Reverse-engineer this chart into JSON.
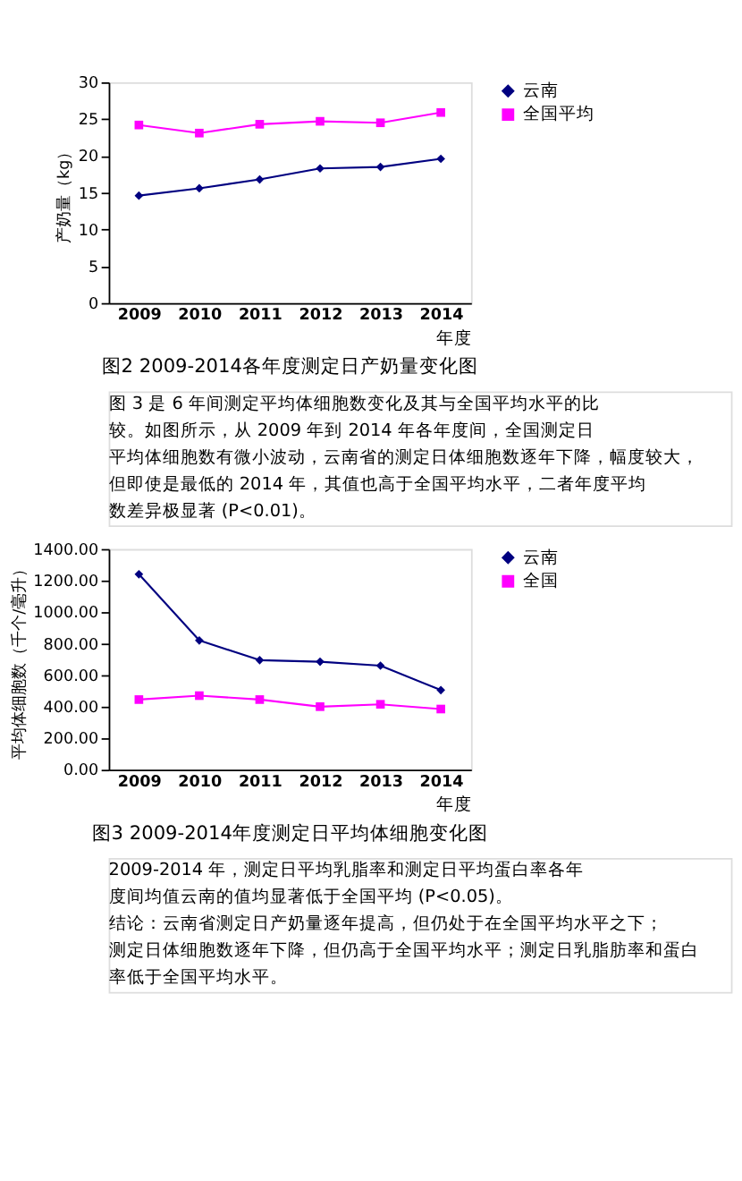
{
  "chart_data": [
    {
      "type": "line",
      "title": "图2 2009-2014各年度测定日产奶量变化图",
      "xlabel": "年度",
      "ylabel": "产奶量（kg）",
      "categories": [
        "2009",
        "2010",
        "2011",
        "2012",
        "2013",
        "2014"
      ],
      "ylim": [
        0,
        30
      ],
      "yticks": [
        0,
        5,
        10,
        15,
        20,
        25,
        30
      ],
      "legend": "right",
      "grid": false,
      "series": [
        {
          "name": "云南",
          "color": "#000080",
          "marker": "diamond",
          "values": [
            14.6,
            15.6,
            16.8,
            18.3,
            18.5,
            19.6
          ]
        },
        {
          "name": "全国平均",
          "color": "#ff00ff",
          "marker": "square",
          "values": [
            24.2,
            23.1,
            24.3,
            24.7,
            24.5,
            25.9
          ]
        }
      ]
    },
    {
      "type": "other",
      "annotations": [
        "图 3 是 6 年间测定平均体细胞数变化及其与全国平均水平的比较。如图所示，从 2009 年到 2014 年各年度间，全国测定日平均体细胞数有微小波动，云南省的测定日体细胞数逐年下降，幅度较大，但即使是最低的 2014 年，其值也高于全国平均水平，二者年度平均数差异极显著 (P<0.01)。"
      ]
    },
    {
      "type": "line",
      "title": "图3 2009-2014年度测定日平均体细胞变化图",
      "xlabel": "年度",
      "ylabel": "平均体细胞数（千个/毫升）",
      "categories": [
        "2009",
        "2010",
        "2011",
        "2012",
        "2013",
        "2014"
      ],
      "ylim": [
        0,
        1400
      ],
      "yticks": [
        {
          "value": 0,
          "label": "0.00"
        },
        {
          "value": 200,
          "label": "200.00"
        },
        {
          "value": 400,
          "label": "400.00"
        },
        {
          "value": 600,
          "label": "600.00"
        },
        {
          "value": 800,
          "label": "800.00"
        },
        {
          "value": 1000,
          "label": "1000.00"
        },
        {
          "value": 1200,
          "label": "1200.00"
        },
        {
          "value": 1400,
          "label": "1400.00"
        }
      ],
      "legend": "right",
      "grid": false,
      "series": [
        {
          "name": "云南",
          "color": "#000080",
          "marker": "diamond",
          "values": [
            1240,
            820,
            695,
            685,
            660,
            505
          ]
        },
        {
          "name": "全国",
          "color": "#ff00ff",
          "marker": "square",
          "values": [
            445,
            470,
            445,
            400,
            415,
            385
          ]
        }
      ]
    },
    {
      "type": "other",
      "annotations": [
        "2009-2014 年，测定日平均乳脂率和测定日平均蛋白率各年度间均值云南的值均显著低于全国平均 (P<0.05)。",
        "结论：云南省测定日产奶量逐年提高，但仍处于在全国平均水平之下；测定日体细胞数逐年下降，但仍高于全国平均水平；测定日乳脂肪率和蛋白率低于全国平均水平。"
      ]
    }
  ]
}
